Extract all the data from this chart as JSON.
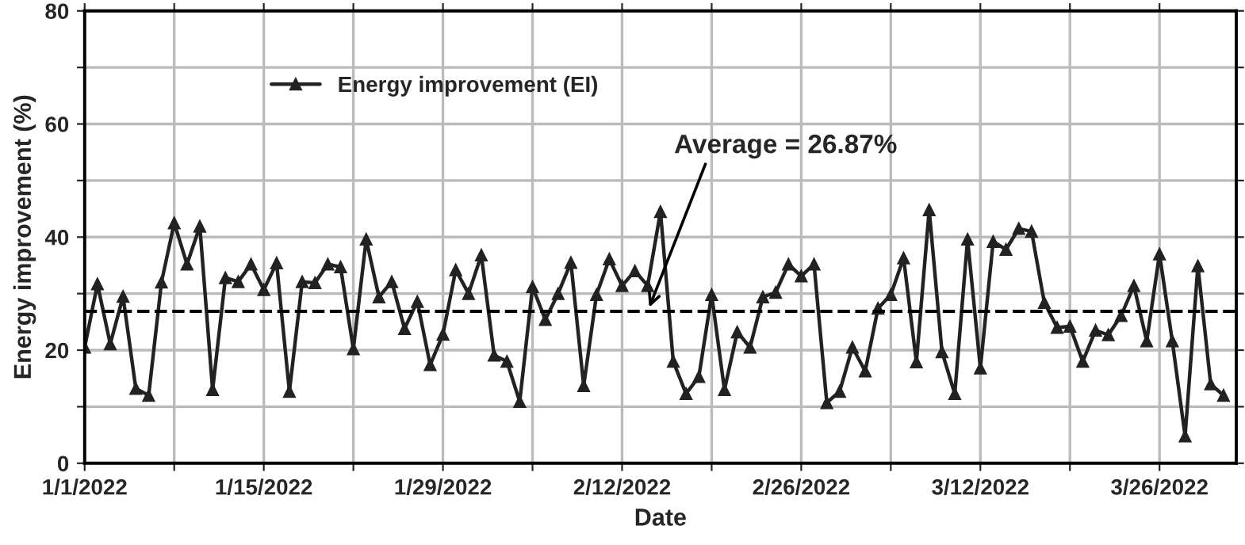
{
  "chart_data": {
    "type": "line",
    "xlabel": "Date",
    "ylabel": "Energy improvement (%)",
    "x": [
      "2022-01-01",
      "2022-01-02",
      "2022-01-03",
      "2022-01-04",
      "2022-01-05",
      "2022-01-06",
      "2022-01-07",
      "2022-01-08",
      "2022-01-09",
      "2022-01-10",
      "2022-01-11",
      "2022-01-12",
      "2022-01-13",
      "2022-01-14",
      "2022-01-15",
      "2022-01-16",
      "2022-01-17",
      "2022-01-18",
      "2022-01-19",
      "2022-01-20",
      "2022-01-21",
      "2022-01-22",
      "2022-01-23",
      "2022-01-24",
      "2022-01-25",
      "2022-01-26",
      "2022-01-27",
      "2022-01-28",
      "2022-01-29",
      "2022-01-30",
      "2022-01-31",
      "2022-02-01",
      "2022-02-02",
      "2022-02-03",
      "2022-02-04",
      "2022-02-05",
      "2022-02-06",
      "2022-02-07",
      "2022-02-08",
      "2022-02-09",
      "2022-02-10",
      "2022-02-11",
      "2022-02-12",
      "2022-02-13",
      "2022-02-14",
      "2022-02-15",
      "2022-02-16",
      "2022-02-17",
      "2022-02-18",
      "2022-02-19",
      "2022-02-20",
      "2022-02-21",
      "2022-02-22",
      "2022-02-23",
      "2022-02-24",
      "2022-02-25",
      "2022-02-26",
      "2022-02-27",
      "2022-02-28",
      "2022-03-01",
      "2022-03-02",
      "2022-03-03",
      "2022-03-04",
      "2022-03-05",
      "2022-03-06",
      "2022-03-07",
      "2022-03-08",
      "2022-03-09",
      "2022-03-10",
      "2022-03-11",
      "2022-03-12",
      "2022-03-13",
      "2022-03-14",
      "2022-03-15",
      "2022-03-16",
      "2022-03-17",
      "2022-03-18",
      "2022-03-19",
      "2022-03-20",
      "2022-03-21",
      "2022-03-22",
      "2022-03-23",
      "2022-03-24",
      "2022-03-25",
      "2022-03-26",
      "2022-03-27",
      "2022-03-28",
      "2022-03-29",
      "2022-03-30",
      "2022-03-31"
    ],
    "series": [
      {
        "name": "Energy improvement (EI)",
        "color": "#222222",
        "values": [
          20.5,
          31.7,
          21.1,
          29.5,
          13.2,
          12,
          32,
          42.5,
          35.2,
          41.9,
          13,
          32.8,
          32.1,
          35.2,
          30.7,
          35.4,
          12.7,
          32.1,
          31.9,
          35.2,
          34.7,
          20.2,
          39.6,
          29.4,
          32.1,
          23.8,
          28.6,
          17.4,
          22.8,
          34.2,
          30,
          36.8,
          19.1,
          18,
          10.9,
          31.2,
          25.4,
          30,
          35.5,
          13.7,
          29.8,
          36.1,
          31.4,
          34,
          31.4,
          44.5,
          18,
          12.3,
          15.3,
          29.8,
          13,
          23.2,
          20.5,
          29.4,
          30.2,
          35.2,
          33.1,
          35.2,
          10.7,
          12.7,
          20.5,
          16.3,
          27.4,
          29.8,
          36.3,
          17.9,
          44.8,
          19.7,
          12.3,
          39.6,
          16.8,
          39.2,
          37.8,
          41.5,
          41,
          28.4,
          24,
          24.2,
          18,
          23.5,
          22.7,
          26.1,
          31.4,
          21.6,
          37,
          21.6,
          4.8,
          34.9,
          14,
          12
        ]
      }
    ],
    "marker": "triangle",
    "line_style": "solid",
    "xlim": [
      "2022-01-01",
      "2022-04-01"
    ],
    "xticks": [
      {
        "value": "2022-01-01",
        "label": "1/1/2022"
      },
      {
        "value": "2022-01-08",
        "label": null
      },
      {
        "value": "2022-01-15",
        "label": "1/15/2022"
      },
      {
        "value": "2022-01-22",
        "label": null
      },
      {
        "value": "2022-01-29",
        "label": "1/29/2022"
      },
      {
        "value": "2022-02-05",
        "label": null
      },
      {
        "value": "2022-02-12",
        "label": "2/12/2022"
      },
      {
        "value": "2022-02-19",
        "label": null
      },
      {
        "value": "2022-02-26",
        "label": "2/26/2022"
      },
      {
        "value": "2022-03-05",
        "label": null
      },
      {
        "value": "2022-03-12",
        "label": "3/12/2022"
      },
      {
        "value": "2022-03-19",
        "label": null
      },
      {
        "value": "2022-03-26",
        "label": "3/26/2022"
      }
    ],
    "ylim": [
      0,
      80
    ],
    "yticks": [
      0,
      {
        "value": 10,
        "label": null
      },
      20,
      {
        "value": 30,
        "label": null
      },
      40,
      {
        "value": 50,
        "label": null
      },
      60,
      {
        "value": 70,
        "label": null
      },
      80
    ],
    "grid": true,
    "legend": "top left",
    "ref_lines": [
      {
        "axis": "y",
        "value": 26.87,
        "color": "#000000",
        "line_style": "dashed"
      }
    ],
    "annotations": [
      {
        "text": "Average = 26.87%",
        "x": "2022-02-14",
        "y": 26.87
      }
    ]
  }
}
